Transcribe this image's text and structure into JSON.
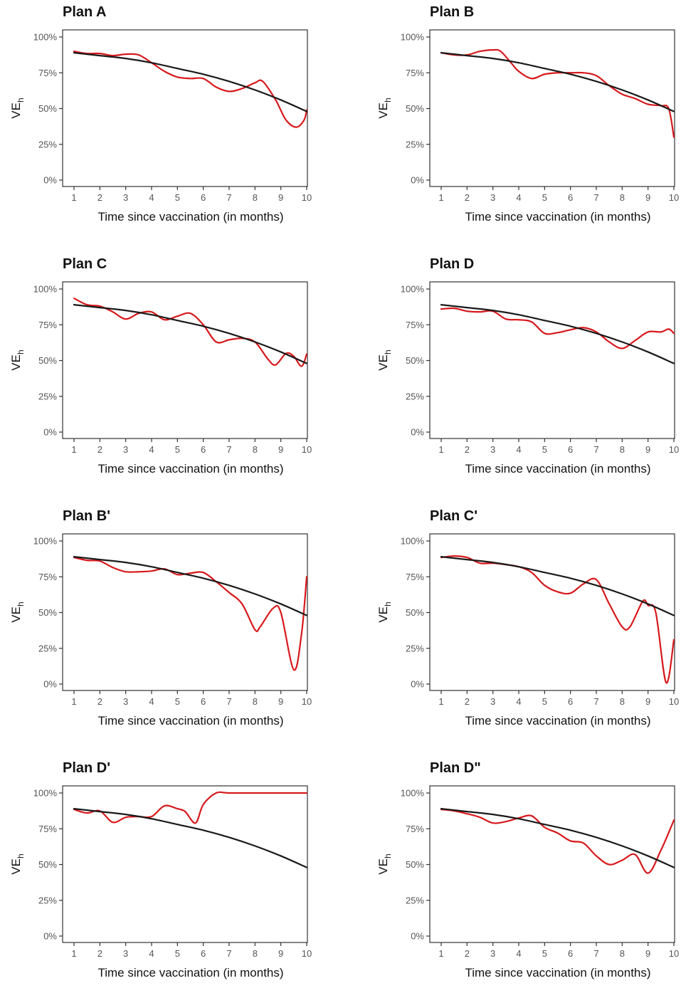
{
  "colors": {
    "model": "#d7191c",
    "reference": "#1a1a1a",
    "axis": "#333333",
    "tick_text": "#555555"
  },
  "chart_data": [
    {
      "type": "line",
      "title": "Plan A",
      "xlabel": "Time since vaccination (in months)",
      "ylabel_main": "VE",
      "ylabel_sub": "h",
      "xlim": [
        1,
        10
      ],
      "ylim": [
        0,
        1
      ],
      "xticks": [
        "1",
        "2",
        "3",
        "4",
        "5",
        "6",
        "7",
        "8",
        "9",
        "10"
      ],
      "yticks": [
        "0%",
        "25%",
        "50%",
        "75%",
        "100%"
      ],
      "grid": false,
      "series": [
        {
          "role": "estimate",
          "color": "#d7191c",
          "x": [
            1,
            1.5,
            2,
            2.5,
            3,
            3.5,
            4,
            4.5,
            5,
            5.5,
            6,
            6.5,
            7,
            7.5,
            8,
            8.3,
            8.8,
            9.2,
            9.6,
            9.9,
            10
          ],
          "y": [
            0.9,
            0.885,
            0.885,
            0.87,
            0.88,
            0.875,
            0.82,
            0.76,
            0.72,
            0.71,
            0.71,
            0.65,
            0.62,
            0.64,
            0.68,
            0.69,
            0.56,
            0.42,
            0.37,
            0.42,
            0.49
          ]
        },
        {
          "role": "reference",
          "color": "#1a1a1a",
          "x": [
            1,
            2,
            3,
            4,
            5,
            6,
            7,
            8,
            9,
            10
          ],
          "y": [
            0.89,
            0.87,
            0.85,
            0.82,
            0.78,
            0.74,
            0.69,
            0.63,
            0.56,
            0.48
          ]
        }
      ]
    },
    {
      "type": "line",
      "title": "Plan B",
      "xlabel": "Time since vaccination (in months)",
      "ylabel_main": "VE",
      "ylabel_sub": "h",
      "xlim": [
        1,
        10
      ],
      "ylim": [
        0,
        1
      ],
      "xticks": [
        "1",
        "2",
        "3",
        "4",
        "5",
        "6",
        "7",
        "8",
        "9",
        "10"
      ],
      "yticks": [
        "0%",
        "25%",
        "50%",
        "75%",
        "100%"
      ],
      "grid": false,
      "series": [
        {
          "role": "estimate",
          "color": "#d7191c",
          "x": [
            1,
            1.5,
            2,
            2.5,
            3,
            3.3,
            3.7,
            4,
            4.5,
            5,
            5.5,
            6,
            6.5,
            7,
            7.5,
            8,
            8.5,
            9,
            9.5,
            9.8,
            10
          ],
          "y": [
            0.89,
            0.875,
            0.875,
            0.9,
            0.91,
            0.9,
            0.82,
            0.76,
            0.71,
            0.74,
            0.75,
            0.75,
            0.75,
            0.73,
            0.66,
            0.6,
            0.57,
            0.53,
            0.52,
            0.5,
            0.3
          ]
        },
        {
          "role": "reference",
          "color": "#1a1a1a",
          "x": [
            1,
            2,
            3,
            4,
            5,
            6,
            7,
            8,
            9,
            10
          ],
          "y": [
            0.89,
            0.87,
            0.85,
            0.82,
            0.78,
            0.74,
            0.69,
            0.63,
            0.56,
            0.48
          ]
        }
      ]
    },
    {
      "type": "line",
      "title": "Plan C",
      "xlabel": "Time since vaccination (in months)",
      "ylabel_main": "VE",
      "ylabel_sub": "h",
      "xlim": [
        1,
        10
      ],
      "ylim": [
        0,
        1
      ],
      "xticks": [
        "1",
        "2",
        "3",
        "4",
        "5",
        "6",
        "7",
        "8",
        "9",
        "10"
      ],
      "yticks": [
        "0%",
        "25%",
        "50%",
        "75%",
        "100%"
      ],
      "grid": false,
      "series": [
        {
          "role": "estimate",
          "color": "#d7191c",
          "x": [
            1,
            1.5,
            2,
            2.5,
            3,
            3.5,
            4,
            4.5,
            5,
            5.5,
            6,
            6.5,
            7,
            7.5,
            8,
            8.5,
            8.8,
            9.2,
            9.5,
            9.8,
            10
          ],
          "y": [
            0.935,
            0.89,
            0.88,
            0.84,
            0.79,
            0.83,
            0.84,
            0.785,
            0.81,
            0.83,
            0.75,
            0.63,
            0.645,
            0.655,
            0.63,
            0.51,
            0.47,
            0.55,
            0.53,
            0.46,
            0.545
          ]
        },
        {
          "role": "reference",
          "color": "#1a1a1a",
          "x": [
            1,
            2,
            3,
            4,
            5,
            6,
            7,
            8,
            9,
            10
          ],
          "y": [
            0.89,
            0.87,
            0.85,
            0.82,
            0.78,
            0.74,
            0.69,
            0.63,
            0.56,
            0.48
          ]
        }
      ]
    },
    {
      "type": "line",
      "title": "Plan D",
      "xlabel": "Time since vaccination (in months)",
      "ylabel_main": "VE",
      "ylabel_sub": "h",
      "xlim": [
        1,
        10
      ],
      "ylim": [
        0,
        1
      ],
      "xticks": [
        "1",
        "2",
        "3",
        "4",
        "5",
        "6",
        "7",
        "8",
        "9",
        "10"
      ],
      "yticks": [
        "0%",
        "25%",
        "50%",
        "75%",
        "100%"
      ],
      "grid": false,
      "series": [
        {
          "role": "estimate",
          "color": "#d7191c",
          "x": [
            1,
            1.5,
            2,
            2.5,
            3,
            3.5,
            4,
            4.5,
            5,
            5.5,
            6,
            6.5,
            7,
            7.5,
            8,
            8.5,
            9,
            9.5,
            9.8,
            10
          ],
          "y": [
            0.86,
            0.865,
            0.845,
            0.84,
            0.845,
            0.79,
            0.785,
            0.77,
            0.69,
            0.695,
            0.715,
            0.73,
            0.7,
            0.63,
            0.585,
            0.64,
            0.7,
            0.7,
            0.72,
            0.69
          ]
        },
        {
          "role": "reference",
          "color": "#1a1a1a",
          "x": [
            1,
            2,
            3,
            4,
            5,
            6,
            7,
            8,
            9,
            10
          ],
          "y": [
            0.89,
            0.87,
            0.85,
            0.82,
            0.78,
            0.74,
            0.69,
            0.63,
            0.56,
            0.48
          ]
        }
      ]
    },
    {
      "type": "line",
      "title": "Plan B'",
      "xlabel": "Time since vaccination (in months)",
      "ylabel_main": "VE",
      "ylabel_sub": "h",
      "xlim": [
        1,
        10
      ],
      "ylim": [
        0,
        1
      ],
      "xticks": [
        "1",
        "2",
        "3",
        "4",
        "5",
        "6",
        "7",
        "8",
        "9",
        "10"
      ],
      "yticks": [
        "0%",
        "25%",
        "50%",
        "75%",
        "100%"
      ],
      "grid": false,
      "series": [
        {
          "role": "estimate",
          "color": "#d7191c",
          "x": [
            1,
            1.5,
            2,
            2.5,
            3,
            3.5,
            4,
            4.5,
            5,
            5.5,
            6,
            6.5,
            7,
            7.5,
            8,
            8.2,
            8.7,
            9,
            9.5,
            9.8,
            10
          ],
          "y": [
            0.885,
            0.865,
            0.86,
            0.815,
            0.785,
            0.785,
            0.79,
            0.805,
            0.765,
            0.775,
            0.78,
            0.715,
            0.64,
            0.56,
            0.38,
            0.4,
            0.53,
            0.5,
            0.1,
            0.35,
            0.75
          ]
        },
        {
          "role": "reference",
          "color": "#1a1a1a",
          "x": [
            1,
            2,
            3,
            4,
            5,
            6,
            7,
            8,
            9,
            10
          ],
          "y": [
            0.89,
            0.87,
            0.85,
            0.82,
            0.78,
            0.74,
            0.69,
            0.63,
            0.56,
            0.48
          ]
        }
      ]
    },
    {
      "type": "line",
      "title": "Plan C'",
      "xlabel": "Time since vaccination (in months)",
      "ylabel_main": "VE",
      "ylabel_sub": "h",
      "xlim": [
        1,
        10
      ],
      "ylim": [
        0,
        1
      ],
      "xticks": [
        "1",
        "2",
        "3",
        "4",
        "5",
        "6",
        "7",
        "8",
        "9",
        "10"
      ],
      "yticks": [
        "0%",
        "25%",
        "50%",
        "75%",
        "100%"
      ],
      "grid": false,
      "series": [
        {
          "role": "estimate",
          "color": "#d7191c",
          "x": [
            1,
            1.5,
            2,
            2.5,
            3,
            3.5,
            4,
            4.5,
            5,
            5.5,
            6,
            6.5,
            7,
            7.5,
            8,
            8.3,
            8.8,
            9,
            9.3,
            9.7,
            10
          ],
          "y": [
            0.885,
            0.895,
            0.885,
            0.845,
            0.845,
            0.835,
            0.82,
            0.78,
            0.69,
            0.645,
            0.635,
            0.7,
            0.73,
            0.56,
            0.4,
            0.4,
            0.58,
            0.55,
            0.5,
            0.01,
            0.31
          ]
        },
        {
          "role": "reference",
          "color": "#1a1a1a",
          "x": [
            1,
            2,
            3,
            4,
            5,
            6,
            7,
            8,
            9,
            10
          ],
          "y": [
            0.89,
            0.87,
            0.85,
            0.82,
            0.78,
            0.74,
            0.69,
            0.63,
            0.56,
            0.48
          ]
        }
      ]
    },
    {
      "type": "line",
      "title": "Plan D'",
      "xlabel": "Time since vaccination (in months)",
      "ylabel_main": "VE",
      "ylabel_sub": "h",
      "xlim": [
        1,
        10
      ],
      "ylim": [
        0,
        1
      ],
      "xticks": [
        "1",
        "2",
        "3",
        "4",
        "5",
        "6",
        "7",
        "8",
        "9",
        "10"
      ],
      "yticks": [
        "0%",
        "25%",
        "50%",
        "75%",
        "100%"
      ],
      "grid": false,
      "series": [
        {
          "role": "estimate",
          "color": "#d7191c",
          "x": [
            1,
            1.5,
            2,
            2.5,
            3,
            3.5,
            4,
            4.5,
            5,
            5.3,
            5.7,
            6,
            6.5,
            7,
            8,
            9,
            10
          ],
          "y": [
            0.885,
            0.86,
            0.875,
            0.795,
            0.83,
            0.835,
            0.835,
            0.91,
            0.89,
            0.87,
            0.79,
            0.92,
            1.0,
            1.0,
            1.0,
            1.0,
            1.0
          ]
        },
        {
          "role": "reference",
          "color": "#1a1a1a",
          "x": [
            1,
            2,
            3,
            4,
            5,
            6,
            7,
            8,
            9,
            10
          ],
          "y": [
            0.89,
            0.87,
            0.85,
            0.82,
            0.78,
            0.74,
            0.69,
            0.63,
            0.56,
            0.48
          ]
        }
      ]
    },
    {
      "type": "line",
      "title": "Plan D\"",
      "xlabel": "Time since vaccination (in months)",
      "ylabel_main": "VE",
      "ylabel_sub": "h",
      "xlim": [
        1,
        10
      ],
      "ylim": [
        0,
        1
      ],
      "xticks": [
        "1",
        "2",
        "3",
        "4",
        "5",
        "6",
        "7",
        "8",
        "9",
        "10"
      ],
      "yticks": [
        "0%",
        "25%",
        "50%",
        "75%",
        "100%"
      ],
      "grid": false,
      "series": [
        {
          "role": "estimate",
          "color": "#d7191c",
          "x": [
            1,
            1.5,
            2,
            2.5,
            3,
            3.5,
            4,
            4.5,
            5,
            5.5,
            6,
            6.5,
            7,
            7.5,
            8,
            8.5,
            9,
            9.5,
            10
          ],
          "y": [
            0.885,
            0.875,
            0.855,
            0.83,
            0.79,
            0.8,
            0.825,
            0.84,
            0.76,
            0.72,
            0.665,
            0.65,
            0.56,
            0.5,
            0.53,
            0.57,
            0.44,
            0.6,
            0.81
          ]
        },
        {
          "role": "reference",
          "color": "#1a1a1a",
          "x": [
            1,
            2,
            3,
            4,
            5,
            6,
            7,
            8,
            9,
            10
          ],
          "y": [
            0.89,
            0.87,
            0.85,
            0.82,
            0.78,
            0.74,
            0.69,
            0.63,
            0.56,
            0.48
          ]
        }
      ]
    }
  ]
}
